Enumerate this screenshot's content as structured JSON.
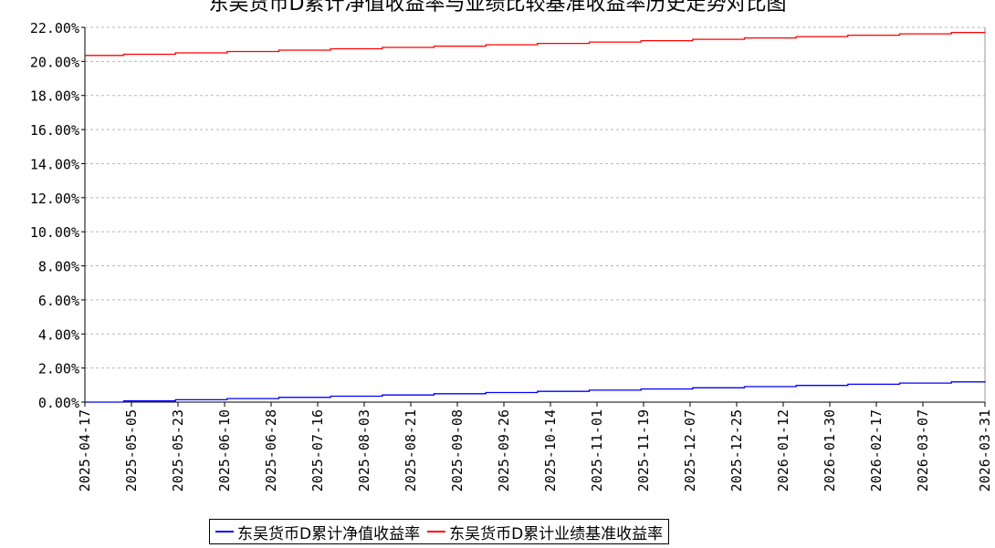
{
  "chart_data": {
    "type": "line",
    "title": "东吴货币D累计净值收益率与业绩比较基准收益率历史走势对比图",
    "ylim": [
      0,
      0.22
    ],
    "y_ticks": [
      "0.00%",
      "2.00%",
      "4.00%",
      "6.00%",
      "8.00%",
      "10.00%",
      "12.00%",
      "14.00%",
      "16.00%",
      "18.00%",
      "20.00%",
      "22.00%"
    ],
    "x_range": [
      "2025-04-17",
      "2026-03-31"
    ],
    "x_ticks": [
      "2025-04-17",
      "2025-05-05",
      "2025-05-23",
      "2025-06-10",
      "2025-06-28",
      "2025-07-16",
      "2025-08-03",
      "2025-08-21",
      "2025-09-08",
      "2025-09-26",
      "2025-10-14",
      "2025-11-01",
      "2025-11-19",
      "2025-12-07",
      "2025-12-25",
      "2026-01-12",
      "2026-01-30",
      "2026-02-17",
      "2026-03-07",
      "2026-03-31"
    ],
    "grid": true,
    "legend_position": "bottom",
    "series": [
      {
        "name": "东吴货币D累计净值收益率",
        "color": "#0000ff",
        "x": [
          "2025-04-17",
          "2025-05-02",
          "2025-05-22",
          "2025-06-11",
          "2025-07-01",
          "2025-07-21",
          "2025-08-10",
          "2025-08-30",
          "2025-09-19",
          "2025-10-09",
          "2025-10-29",
          "2025-11-18",
          "2025-12-08",
          "2025-12-28",
          "2026-01-17",
          "2026-02-06",
          "2026-02-26",
          "2026-03-18",
          "2026-03-31"
        ],
        "values": [
          0.0,
          0.0007,
          0.0014,
          0.0021,
          0.0028,
          0.0035,
          0.0042,
          0.0049,
          0.0056,
          0.0063,
          0.007,
          0.0077,
          0.0084,
          0.0091,
          0.0098,
          0.0105,
          0.0112,
          0.0119,
          0.0123
        ]
      },
      {
        "name": "东吴货币D累计业绩基准收益率",
        "color": "#ff0000",
        "x": [
          "2025-04-17",
          "2025-05-02",
          "2025-05-22",
          "2025-06-11",
          "2025-07-01",
          "2025-07-21",
          "2025-08-10",
          "2025-08-30",
          "2025-09-19",
          "2025-10-09",
          "2025-10-29",
          "2025-11-18",
          "2025-12-08",
          "2025-12-28",
          "2026-01-17",
          "2026-02-06",
          "2026-02-26",
          "2026-03-18",
          "2026-03-31"
        ],
        "values": [
          0.2035,
          0.2042,
          0.205,
          0.2058,
          0.2066,
          0.2074,
          0.2082,
          0.209,
          0.2098,
          0.2106,
          0.2114,
          0.2122,
          0.213,
          0.2138,
          0.2146,
          0.2154,
          0.2162,
          0.217,
          0.2175
        ]
      }
    ]
  }
}
